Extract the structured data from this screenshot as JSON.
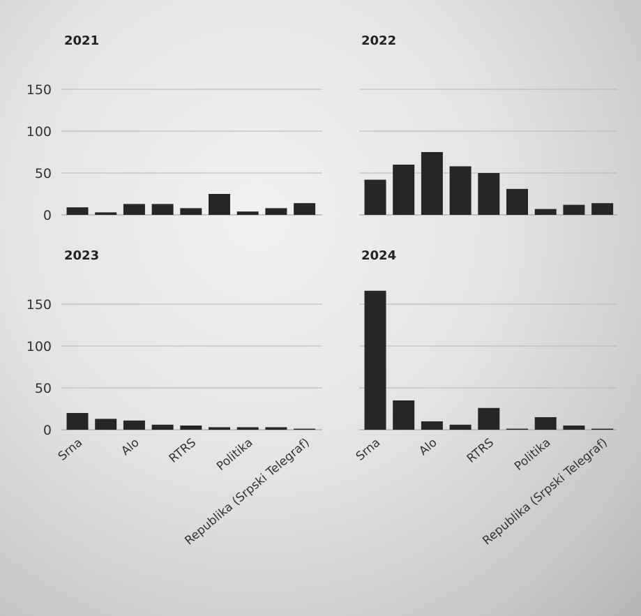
{
  "chart_data": [
    {
      "type": "bar",
      "title": "2021",
      "categories": [
        "Srna",
        "",
        "Alo",
        "",
        "RTRS",
        "",
        "Politika",
        "",
        "Republika (Srpski Telegraf)"
      ],
      "values": [
        9,
        3,
        13,
        13,
        8,
        25,
        4,
        8,
        14
      ],
      "ylim": [
        0,
        180
      ],
      "yticks": [
        0,
        50,
        100,
        150
      ],
      "xlabel": "",
      "ylabel": "",
      "grid": true
    },
    {
      "type": "bar",
      "title": "2022",
      "categories": [
        "Srna",
        "",
        "Alo",
        "",
        "RTRS",
        "",
        "Politika",
        "",
        "Republika (Srpski Telegraf)"
      ],
      "values": [
        42,
        60,
        75,
        58,
        50,
        31,
        7,
        12,
        14
      ],
      "ylim": [
        0,
        180
      ],
      "yticks": [
        0,
        50,
        100,
        150
      ],
      "xlabel": "",
      "ylabel": "",
      "grid": true
    },
    {
      "type": "bar",
      "title": "2023",
      "categories": [
        "Srna",
        "",
        "Alo",
        "",
        "RTRS",
        "",
        "Politika",
        "",
        "Republika (Srpski Telegraf)"
      ],
      "values": [
        20,
        13,
        11,
        6,
        5,
        3,
        3,
        3,
        1
      ],
      "ylim": [
        0,
        180
      ],
      "yticks": [
        0,
        50,
        100,
        150
      ],
      "xlabel": "",
      "ylabel": "",
      "grid": true
    },
    {
      "type": "bar",
      "title": "2024",
      "categories": [
        "Srna",
        "",
        "Alo",
        "",
        "RTRS",
        "",
        "Politika",
        "",
        "Republika (Srpski Telegraf)"
      ],
      "values": [
        166,
        35,
        10,
        6,
        26,
        1,
        15,
        5,
        1
      ],
      "ylim": [
        0,
        180
      ],
      "yticks": [
        0,
        50,
        100,
        150
      ],
      "xlabel": "",
      "ylabel": "",
      "grid": true
    }
  ],
  "colors": {
    "bar": "#262626",
    "grid": "#b4b4b4"
  },
  "x_tick_labels": [
    "Srna",
    "Alo",
    "RTRS",
    "Politika",
    "Republika (Srpski Telegraf)"
  ]
}
